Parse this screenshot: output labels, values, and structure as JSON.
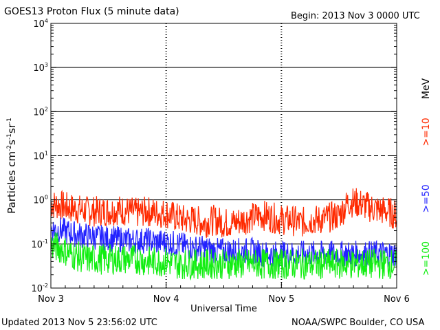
{
  "header": {
    "title": "GOES13 Proton Flux (5 minute data)",
    "begin": "Begin: 2013 Nov 3 0000 UTC"
  },
  "footer": {
    "updated": "Updated 2013 Nov  5 23:56:02 UTC",
    "credit": "NOAA/SWPC Boulder, CO USA"
  },
  "chart_data": {
    "type": "line",
    "title": "GOES13 Proton Flux (5 minute data)",
    "xlabel": "Universal Time",
    "ylabel": "Particles cm-2s-1sr-1",
    "yscale": "log",
    "ylim": [
      0.01,
      10000
    ],
    "xlim": [
      0,
      72
    ],
    "x_unit": "hours since 2013 Nov 3 0000 UTC",
    "xticks": [
      {
        "x": 0,
        "label": "Nov 3"
      },
      {
        "x": 24,
        "label": "Nov 4"
      },
      {
        "x": 48,
        "label": "Nov 5"
      },
      {
        "x": 72,
        "label": "Nov 6"
      }
    ],
    "yticks": [
      {
        "value": 0.01,
        "base": "10",
        "exp": "-2"
      },
      {
        "value": 0.1,
        "base": "10",
        "exp": "-1"
      },
      {
        "value": 1,
        "base": "10",
        "exp": "0"
      },
      {
        "value": 10,
        "base": "10",
        "exp": "1"
      },
      {
        "value": 100,
        "base": "10",
        "exp": "2"
      },
      {
        "value": 1000,
        "base": "10",
        "exp": "3"
      },
      {
        "value": 10000,
        "base": "10",
        "exp": "4"
      }
    ],
    "threshold_line": 10,
    "unit_label": "MeV",
    "grid": true,
    "series": [
      {
        "name": ">=10",
        "color": "#ff2a00",
        "x": [
          0,
          2,
          4,
          6,
          8,
          10,
          12,
          14,
          16,
          18,
          20,
          22,
          24,
          26,
          28,
          30,
          32,
          34,
          36,
          38,
          40,
          42,
          44,
          46,
          48,
          50,
          52,
          54,
          56,
          58,
          60,
          62,
          64,
          66,
          68,
          70,
          72
        ],
        "values": [
          0.8,
          0.75,
          0.65,
          0.6,
          0.55,
          0.55,
          0.55,
          0.6,
          0.55,
          0.5,
          0.55,
          0.5,
          0.5,
          0.4,
          0.35,
          0.35,
          0.3,
          0.35,
          0.3,
          0.3,
          0.35,
          0.4,
          0.45,
          0.4,
          0.35,
          0.35,
          0.3,
          0.35,
          0.35,
          0.4,
          0.45,
          0.9,
          0.85,
          0.7,
          0.6,
          0.55,
          0.45
        ]
      },
      {
        "name": ">=50",
        "color": "#2222ff",
        "x": [
          0,
          2,
          4,
          6,
          8,
          10,
          12,
          14,
          16,
          18,
          20,
          22,
          24,
          26,
          28,
          30,
          32,
          34,
          36,
          38,
          40,
          42,
          44,
          46,
          48,
          50,
          52,
          54,
          56,
          58,
          60,
          62,
          64,
          66,
          68,
          70,
          72
        ],
        "values": [
          0.22,
          0.21,
          0.18,
          0.16,
          0.15,
          0.14,
          0.13,
          0.13,
          0.12,
          0.12,
          0.12,
          0.11,
          0.11,
          0.1,
          0.09,
          0.08,
          0.08,
          0.07,
          0.07,
          0.07,
          0.07,
          0.07,
          0.06,
          0.06,
          0.06,
          0.06,
          0.06,
          0.06,
          0.06,
          0.06,
          0.06,
          0.06,
          0.06,
          0.06,
          0.06,
          0.06,
          0.06
        ]
      },
      {
        "name": ">=100",
        "color": "#11ee11",
        "x": [
          0,
          2,
          4,
          6,
          8,
          10,
          12,
          14,
          16,
          18,
          20,
          22,
          24,
          26,
          28,
          30,
          32,
          34,
          36,
          38,
          40,
          42,
          44,
          46,
          48,
          50,
          52,
          54,
          56,
          58,
          60,
          62,
          64,
          66,
          68,
          70,
          72
        ],
        "values": [
          0.09,
          0.08,
          0.06,
          0.05,
          0.045,
          0.045,
          0.045,
          0.045,
          0.045,
          0.045,
          0.04,
          0.04,
          0.04,
          0.035,
          0.035,
          0.035,
          0.035,
          0.035,
          0.035,
          0.035,
          0.035,
          0.035,
          0.035,
          0.035,
          0.035,
          0.035,
          0.035,
          0.035,
          0.035,
          0.035,
          0.035,
          0.035,
          0.035,
          0.035,
          0.035,
          0.035,
          0.035
        ]
      }
    ],
    "noise": [
      0.35,
      0.3,
      0.35
    ]
  }
}
